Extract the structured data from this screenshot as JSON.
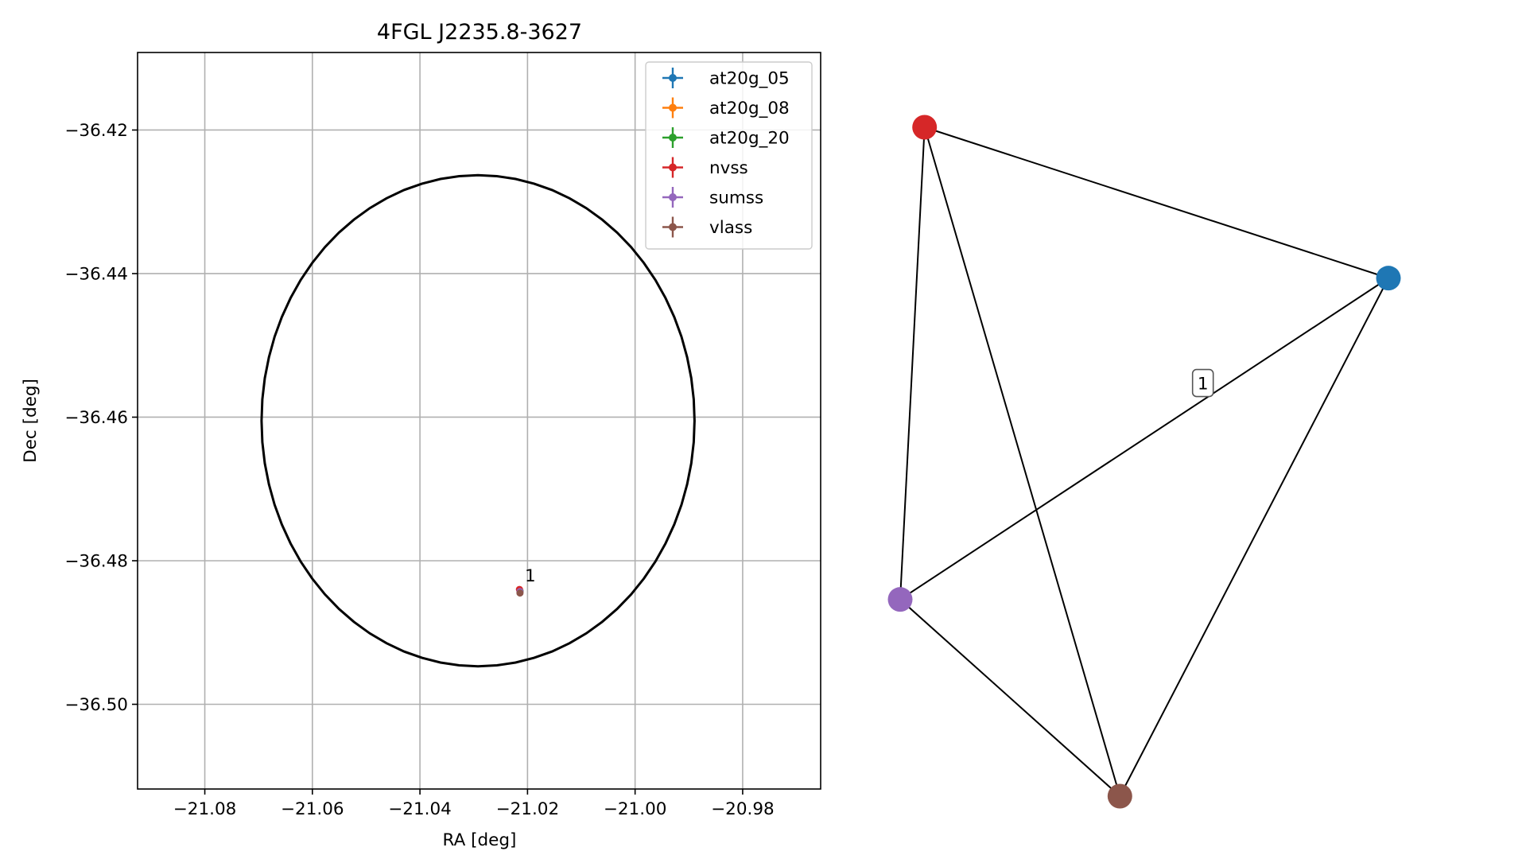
{
  "chart_data": [
    {
      "type": "scatter",
      "title": "4FGL J2235.8-3627",
      "xlabel": "RA [deg]",
      "ylabel": "Dec [deg]",
      "xlim": [
        -21.0925,
        -20.9655
      ],
      "ylim": [
        -36.5118,
        -36.4092
      ],
      "xticks": [
        -21.08,
        -21.06,
        -21.04,
        -21.02,
        -21.0,
        -20.98
      ],
      "xtick_labels": [
        "−21.08",
        "−21.06",
        "−21.04",
        "−21.02",
        "−21.00",
        "−20.98"
      ],
      "yticks": [
        -36.42,
        -36.44,
        -36.46,
        -36.48,
        -36.5
      ],
      "ytick_labels": [
        "−36.42",
        "−36.44",
        "−36.46",
        "−36.48",
        "−36.50"
      ],
      "grid": true,
      "legend_position": "top-right",
      "ellipse": {
        "center": [
          -21.0292,
          -36.4605
        ],
        "semi_axis_ra": 0.04025,
        "semi_axis_dec": 0.0342,
        "color": "#000000"
      },
      "series": [
        {
          "name": "at20g_05",
          "color": "#1f77b4",
          "points": [
            {
              "x": -21.0214,
              "y": -36.4842
            }
          ]
        },
        {
          "name": "at20g_08",
          "color": "#ff7f0e",
          "points": [
            {
              "x": -21.0214,
              "y": -36.4842
            }
          ]
        },
        {
          "name": "at20g_20",
          "color": "#2ca02c",
          "points": [
            {
              "x": -21.0214,
              "y": -36.4842
            }
          ]
        },
        {
          "name": "nvss",
          "color": "#d62728",
          "points": [
            {
              "x": -21.0215,
              "y": -36.484
            }
          ]
        },
        {
          "name": "sumss",
          "color": "#9467bd",
          "points": [
            {
              "x": -21.0214,
              "y": -36.4843
            }
          ]
        },
        {
          "name": "vlass",
          "color": "#8c564b",
          "points": [
            {
              "x": -21.0214,
              "y": -36.4845
            }
          ]
        }
      ],
      "annotations": [
        {
          "text": "1",
          "x": -21.0205,
          "y": -36.4829
        }
      ]
    },
    {
      "type": "network",
      "nodes": [
        {
          "id": "nvss",
          "color": "#d62728",
          "x": 0.05,
          "y": 0.1
        },
        {
          "id": "at20g_05",
          "color": "#1f77b4",
          "x": 1.0,
          "y": 0.33
        },
        {
          "id": "sumss",
          "color": "#9467bd",
          "x": 0.0,
          "y": 0.82
        },
        {
          "id": "vlass",
          "color": "#8c564b",
          "x": 0.45,
          "y": 1.12
        }
      ],
      "edges": [
        [
          "nvss",
          "at20g_05"
        ],
        [
          "nvss",
          "sumss"
        ],
        [
          "nvss",
          "vlass"
        ],
        [
          "at20g_05",
          "sumss"
        ],
        [
          "at20g_05",
          "vlass"
        ],
        [
          "sumss",
          "vlass"
        ]
      ],
      "label_box": {
        "text": "1",
        "x": 0.62,
        "y": 0.49
      }
    }
  ]
}
